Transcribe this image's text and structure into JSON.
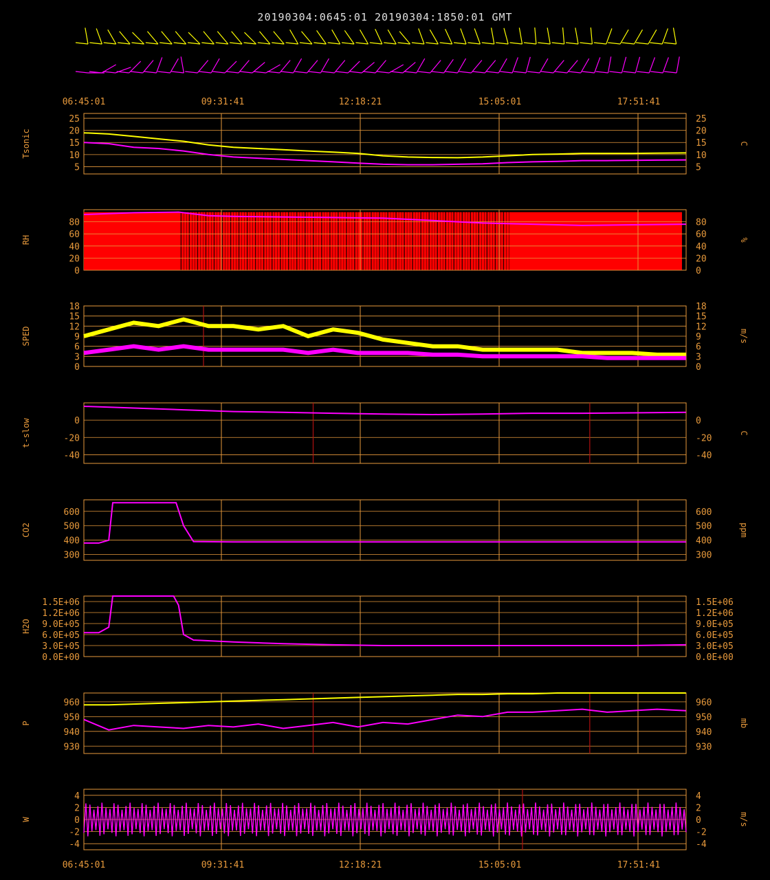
{
  "header": {
    "title": "20190304:0645:01 20190304:1850:01 GMT"
  },
  "colors": {
    "axis": "#e89a3c",
    "grid": "#e89a3c",
    "series_a": "#ffff00",
    "series_b": "#ff00ff",
    "rh_fill": "#ff0000",
    "spike": "#b01010"
  },
  "wind_barbs": {
    "row1_color": "#ffff00",
    "row2_color": "#ff00ff",
    "row1_dirs_deg": [
      350,
      340,
      330,
      320,
      315,
      320,
      320,
      320,
      315,
      320,
      320,
      320,
      315,
      320,
      320,
      330,
      320,
      325,
      330,
      325,
      330,
      335,
      330,
      320,
      340,
      330,
      335,
      340,
      340,
      350,
      345,
      350,
      355,
      350,
      355,
      350,
      355,
      20,
      30,
      30,
      30,
      20,
      350
    ],
    "row2_dirs_deg": [
      90,
      60,
      70,
      45,
      40,
      20,
      30,
      350,
      40,
      30,
      45,
      40,
      50,
      60,
      40,
      30,
      40,
      30,
      40,
      45,
      50,
      40,
      60,
      50,
      30,
      40,
      35,
      30,
      40,
      40,
      30,
      20,
      15,
      30,
      40,
      40,
      30,
      20,
      10,
      15,
      15,
      20,
      20,
      10
    ]
  },
  "time_axis": {
    "start": "06:45:01",
    "end": "18:50:01",
    "labels": [
      "06:45:01",
      "09:31:41",
      "12:18:21",
      "15:05:01",
      "17:51:41"
    ]
  },
  "chart_data": [
    {
      "type": "line",
      "id": "tsonic",
      "ylabel": "Tsonic",
      "units": "C",
      "yticks": [
        "25",
        "20",
        "15",
        "10",
        "5"
      ],
      "ylim": [
        2,
        27
      ],
      "x_hours": [
        0,
        0.5,
        1,
        1.5,
        2,
        2.5,
        3,
        3.5,
        4,
        4.5,
        5,
        5.5,
        6,
        6.5,
        7,
        7.5,
        8,
        8.5,
        9,
        9.5,
        10,
        10.5,
        11,
        11.5,
        12.08
      ],
      "series": [
        {
          "color": "#ffff00",
          "values": [
            19,
            18.5,
            17.5,
            16.5,
            15.5,
            14,
            13,
            12.5,
            12,
            11.5,
            11,
            10.5,
            9.5,
            9,
            8.8,
            8.7,
            9,
            9.5,
            10,
            10.2,
            10.5,
            10.5,
            10.5,
            10.6,
            10.7
          ]
        },
        {
          "color": "#ff00ff",
          "values": [
            15,
            14.5,
            13,
            12.5,
            11.5,
            10,
            9,
            8.5,
            8,
            7.5,
            7,
            6.5,
            6,
            5.8,
            5.8,
            6,
            6.2,
            6.7,
            7,
            7.2,
            7.5,
            7.5,
            7.6,
            7.7,
            7.8
          ]
        }
      ]
    },
    {
      "type": "area",
      "id": "rh",
      "ylabel": "RH",
      "units": "%",
      "yticks": [
        "80",
        "60",
        "40",
        "20",
        "0"
      ],
      "ylim": [
        0,
        100
      ],
      "x_hours": [
        0,
        1,
        1.9,
        2.5,
        3,
        4,
        5,
        6,
        7,
        8,
        9,
        10,
        11,
        12.08
      ],
      "series": [
        {
          "color": "#ff00ff",
          "values": [
            92,
            95,
            96,
            90,
            89,
            88,
            87,
            86,
            82,
            78,
            76,
            74,
            75,
            76
          ]
        }
      ]
    },
    {
      "type": "line",
      "id": "sped",
      "ylabel": "SPED",
      "units": "m/s",
      "yticks": [
        "18",
        "15",
        "12",
        "9",
        "6",
        "3",
        "0"
      ],
      "ylim": [
        0,
        18
      ],
      "x_hours": [
        0,
        0.5,
        1,
        1.5,
        2,
        2.5,
        3,
        3.5,
        4,
        4.5,
        5,
        5.5,
        6,
        6.5,
        7,
        7.5,
        8,
        8.5,
        9,
        9.5,
        10,
        10.5,
        11,
        11.5,
        12.08
      ],
      "series": [
        {
          "color": "#ffff00",
          "values": [
            9,
            11,
            13,
            12,
            14,
            12,
            12,
            11,
            12,
            9,
            11,
            10,
            8,
            7,
            6,
            6,
            5,
            5,
            5,
            5,
            4,
            4,
            4,
            3.5,
            3.5
          ]
        },
        {
          "color": "#ff00ff",
          "values": [
            4,
            5,
            6,
            5,
            6,
            5,
            5,
            5,
            5,
            4,
            5,
            4,
            4,
            4,
            3.5,
            3.5,
            3,
            3,
            3,
            3,
            3,
            2.5,
            2.5,
            2.5,
            2.5
          ]
        }
      ]
    },
    {
      "type": "line",
      "id": "t-slow",
      "ylabel": "t-slow",
      "units": "C",
      "yticks": [
        "0",
        "-20",
        "-40"
      ],
      "ylim": [
        -50,
        20
      ],
      "x_hours": [
        0,
        1,
        2,
        3,
        4,
        5,
        6,
        7,
        8,
        9,
        10,
        11,
        12.08
      ],
      "series": [
        {
          "color": "#ff00ff",
          "values": [
            16,
            14,
            12,
            10,
            9,
            8,
            7,
            6.5,
            7,
            8,
            8,
            8.5,
            9
          ]
        }
      ]
    },
    {
      "type": "line",
      "id": "co2",
      "ylabel": "CO2",
      "units": "ppm",
      "yticks": [
        "600",
        "500",
        "400",
        "300"
      ],
      "ylim": [
        260,
        680
      ],
      "x_hours": [
        0,
        0.3,
        0.5,
        0.58,
        1,
        1.5,
        1.85,
        2,
        2.2,
        3,
        4,
        5,
        6,
        7,
        8,
        9,
        10,
        11,
        12.08
      ],
      "series": [
        {
          "color": "#ff00ff",
          "values": [
            380,
            380,
            400,
            660,
            660,
            660,
            660,
            500,
            390,
            388,
            388,
            388,
            388,
            388,
            388,
            388,
            388,
            388,
            388
          ]
        }
      ]
    },
    {
      "type": "line",
      "id": "h2o",
      "ylabel": "H2O",
      "units": "",
      "yticks": [
        "1.5E+06",
        "1.2E+06",
        "9.0E+05",
        "6.0E+05",
        "3.0E+05",
        "0.0E+00"
      ],
      "ylim": [
        0,
        1650000
      ],
      "x_hours": [
        0,
        0.3,
        0.5,
        0.58,
        1,
        1.5,
        1.8,
        1.9,
        2,
        2.2,
        3,
        4,
        5,
        6,
        7,
        8,
        9,
        10,
        11,
        12.08
      ],
      "series": [
        {
          "color": "#ff00ff",
          "values": [
            650000,
            650000,
            800000,
            1650000,
            1650000,
            1650000,
            1650000,
            1400000,
            600000,
            450000,
            400000,
            350000,
            320000,
            300000,
            300000,
            300000,
            300000,
            300000,
            300000,
            320000
          ]
        }
      ]
    },
    {
      "type": "line",
      "id": "p",
      "ylabel": "P",
      "units": "mb",
      "yticks": [
        "960",
        "950",
        "940",
        "930"
      ],
      "ylim": [
        925,
        966
      ],
      "x_hours": [
        0,
        0.5,
        1,
        1.5,
        2,
        2.5,
        3,
        3.5,
        4,
        4.5,
        5,
        5.5,
        6,
        6.5,
        7,
        7.5,
        8,
        8.5,
        9,
        9.5,
        10,
        10.5,
        11,
        11.5,
        12.08
      ],
      "series": [
        {
          "color": "#ffff00",
          "values": [
            958,
            958,
            958.5,
            959,
            959.5,
            960,
            960.5,
            961,
            961.5,
            962,
            962.5,
            963,
            963.5,
            964,
            964.5,
            965,
            965,
            965.5,
            965.5,
            966,
            966,
            966,
            966,
            966,
            966
          ]
        },
        {
          "color": "#ff00ff",
          "values": [
            948,
            941,
            944,
            943,
            942,
            944,
            943,
            945,
            942,
            944,
            946,
            943,
            946,
            945,
            948,
            951,
            950,
            953,
            953,
            954,
            955,
            953,
            954,
            955,
            954
          ]
        }
      ]
    },
    {
      "type": "line",
      "id": "w",
      "ylabel": "W",
      "units": "m/s",
      "yticks": [
        "4",
        "2",
        "0",
        "-2",
        "-4"
      ],
      "ylim": [
        -5,
        5
      ],
      "x_hours": [
        0,
        1,
        2,
        3,
        4,
        5,
        6,
        7,
        8,
        9,
        10,
        11,
        12.08
      ],
      "series": [
        {
          "color": "#ff00ff",
          "values": [
            0,
            0,
            0,
            0,
            0,
            0,
            0,
            0,
            0,
            0,
            0,
            0,
            0
          ]
        }
      ]
    }
  ]
}
